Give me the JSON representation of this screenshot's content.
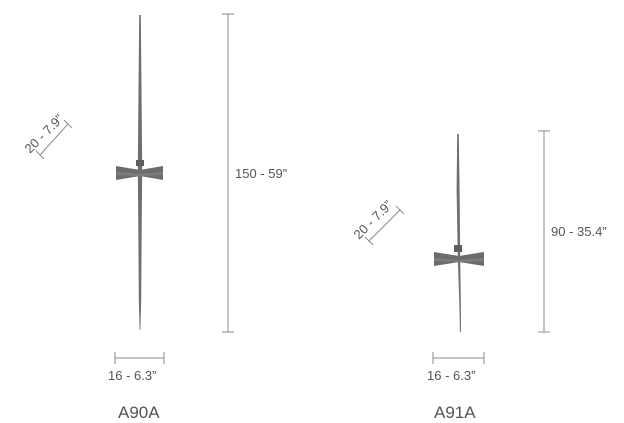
{
  "products": [
    {
      "model": "A90A",
      "height_label": "150 - 59”",
      "width_label": "16 - 6.3”",
      "diagonal_label": "20 - 7.9”"
    },
    {
      "model": "A91A",
      "height_label": "90 - 35.4”",
      "width_label": "16 - 6.3”",
      "diagonal_label": "20 - 7.9”"
    }
  ],
  "colors": {
    "lamp": "#6c6c6c",
    "dimension_lines": "#8a8a8a",
    "text": "#555555"
  }
}
